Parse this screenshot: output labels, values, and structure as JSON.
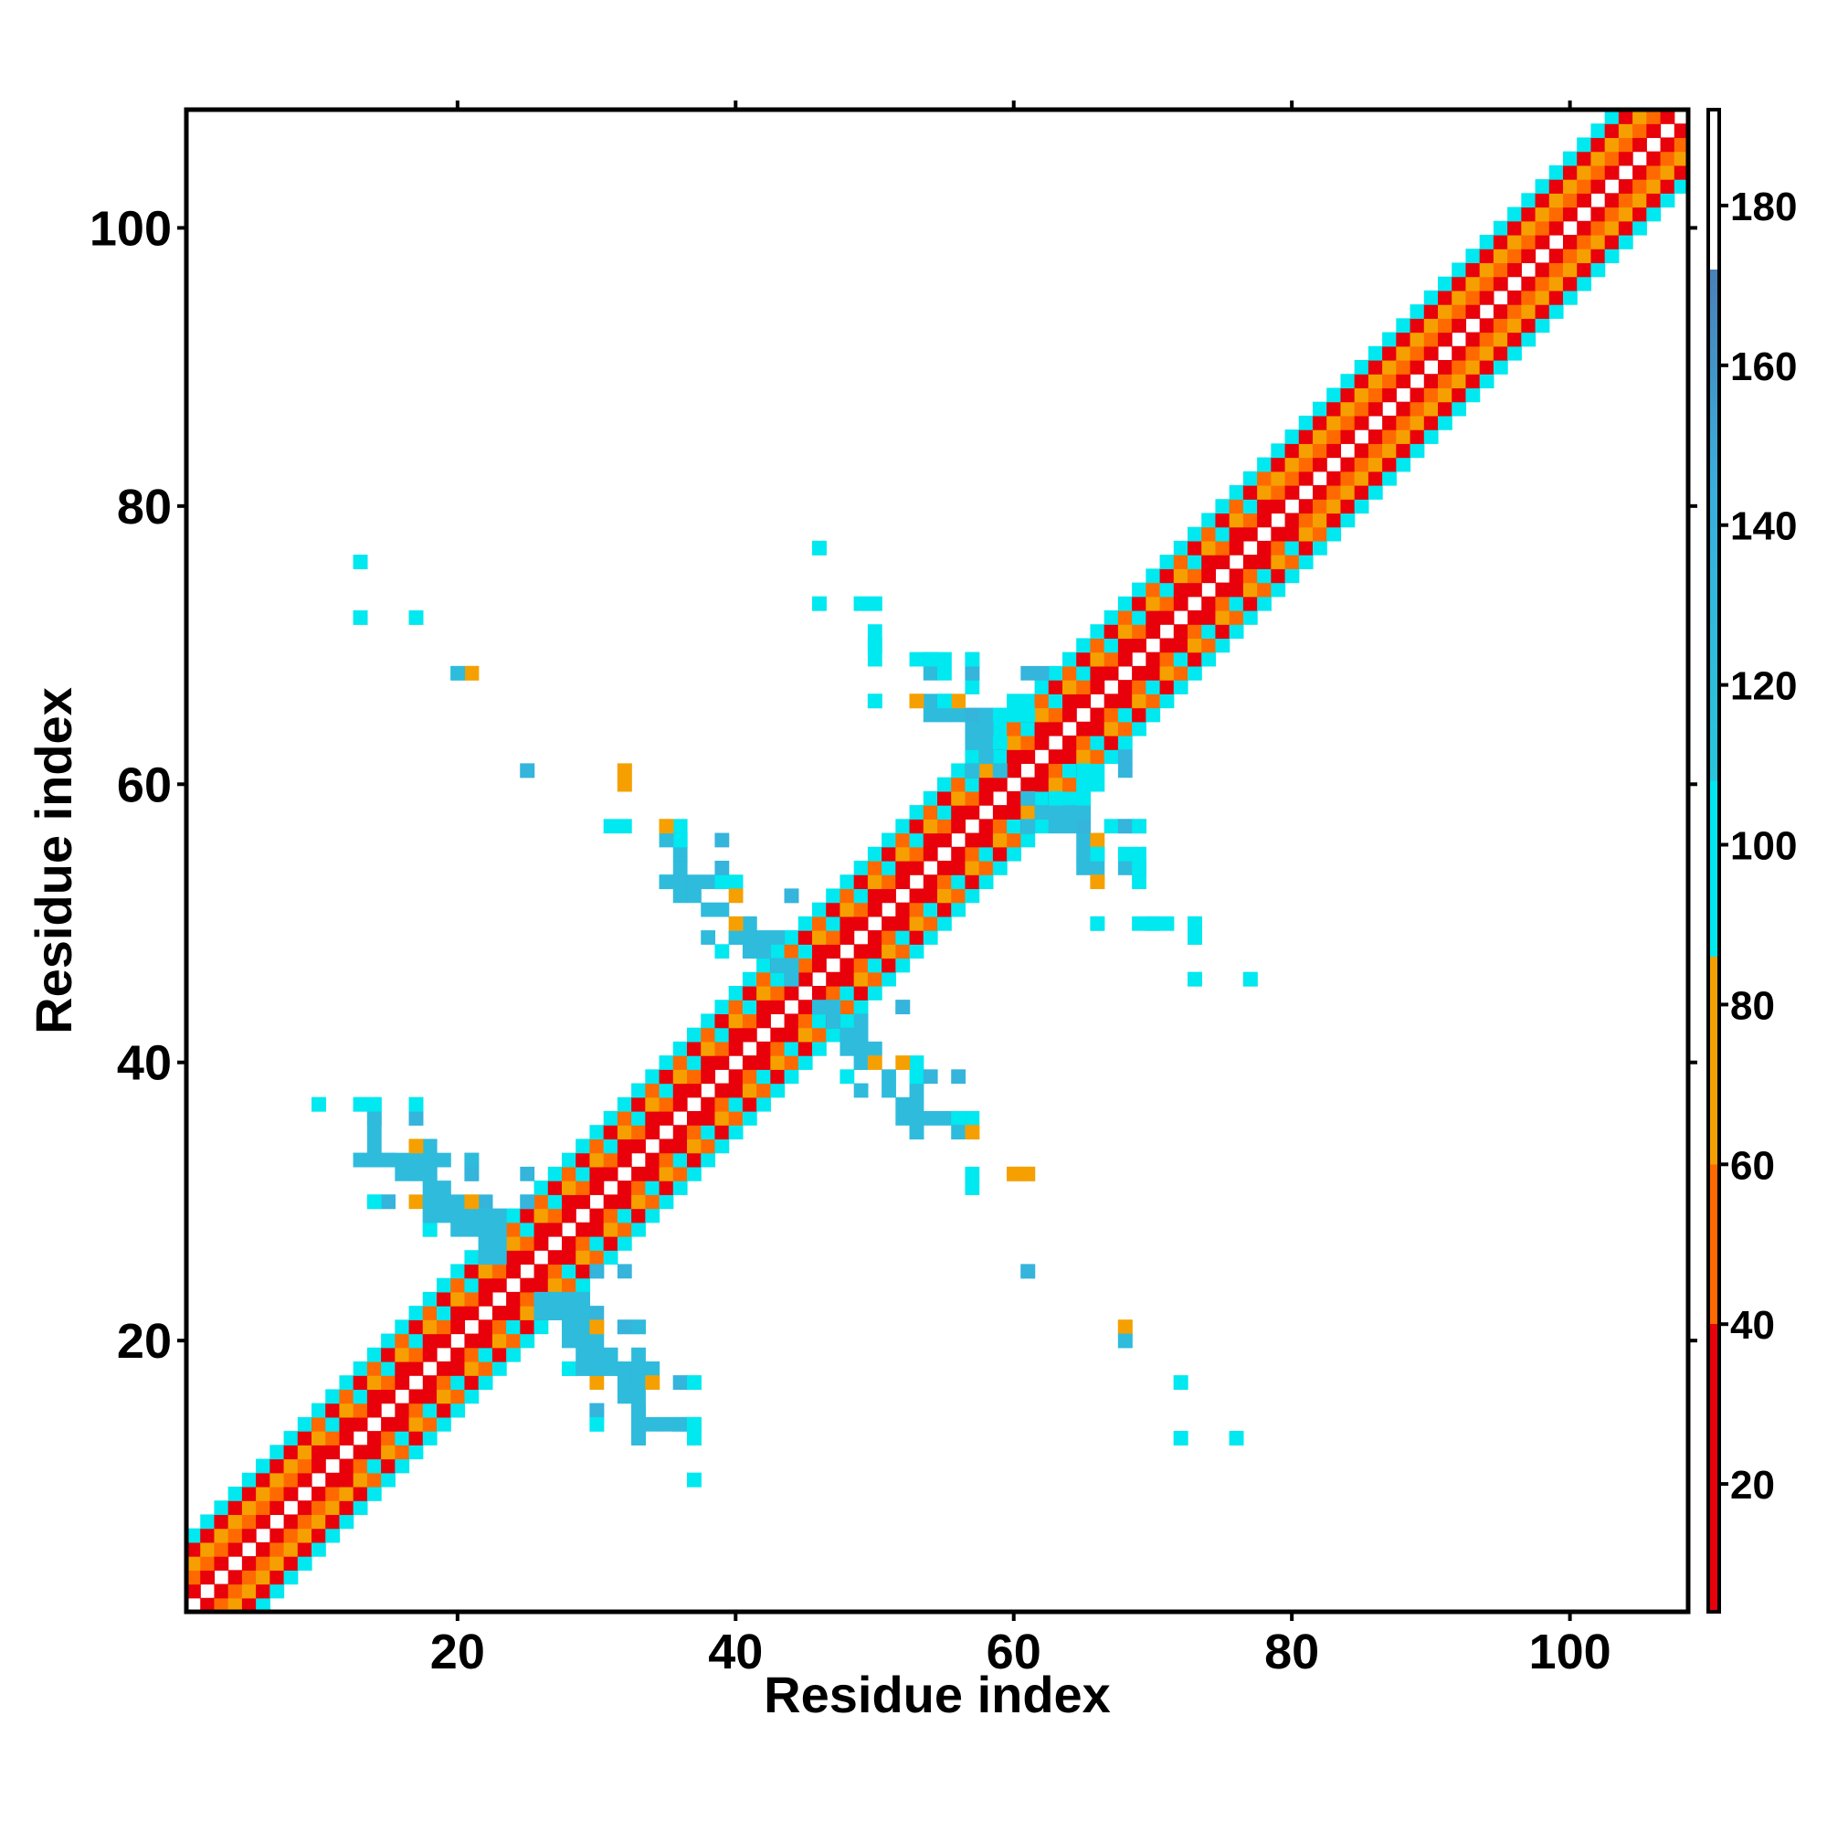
{
  "chart_data": {
    "type": "heatmap",
    "title": "",
    "xlabel": "Residue index",
    "ylabel": "Residue index",
    "xlim": [
      0.5,
      108.5
    ],
    "ylim": [
      0.5,
      108.5
    ],
    "x_ticks": [
      20,
      40,
      60,
      80,
      100
    ],
    "y_ticks": [
      20,
      40,
      60,
      80,
      100
    ],
    "grid": false,
    "legend": "colorbar-right",
    "colorbar": {
      "ticks": [
        20,
        40,
        60,
        80,
        100,
        120,
        140,
        160,
        180
      ],
      "range": [
        4,
        192
      ],
      "stops": [
        {
          "value": 4,
          "color": "#e8000a"
        },
        {
          "value": 40,
          "color": "#e8000a"
        },
        {
          "value": 40,
          "color": "#ff6a00"
        },
        {
          "value": 60,
          "color": "#ff6a00"
        },
        {
          "value": 60,
          "color": "#f5a000"
        },
        {
          "value": 86,
          "color": "#f5a000"
        },
        {
          "value": 86,
          "color": "#00e8f0"
        },
        {
          "value": 108,
          "color": "#00e8f0"
        },
        {
          "value": 108,
          "color": "#26c6dc"
        },
        {
          "value": 145,
          "color": "#3aaedc"
        },
        {
          "value": 172,
          "color": "#4a80b8"
        },
        {
          "value": 172,
          "color": "#ffffff"
        },
        {
          "value": 192,
          "color": "#ffffff"
        }
      ]
    },
    "band": {
      "residues": [
        1,
        108
      ],
      "max_offset": 5,
      "offset_values": {
        "1": 22,
        "2": 50,
        "3": 64,
        "4": 36,
        "5": 92
      },
      "secondary_values": {
        "2": 30,
        "3": 95,
        "4": 48,
        "5": 95
      },
      "wide_ranges": [
        [
          10,
          40
        ],
        [
          41,
          57
        ],
        [
          58,
          78
        ]
      ]
    },
    "contacts": [
      [
        13,
        76,
        98
      ],
      [
        13,
        72,
        98
      ],
      [
        17,
        72,
        98
      ],
      [
        20,
        68,
        98
      ],
      [
        21,
        68,
        72
      ],
      [
        25,
        61,
        135
      ],
      [
        32,
        61,
        72
      ],
      [
        32,
        60,
        72
      ],
      [
        31,
        57,
        98
      ],
      [
        35,
        57,
        72
      ],
      [
        36,
        57,
        96
      ],
      [
        36,
        56,
        125
      ],
      [
        39,
        56,
        135
      ],
      [
        36,
        54,
        125
      ],
      [
        35,
        53,
        96
      ],
      [
        37,
        53,
        125
      ],
      [
        38,
        53,
        125
      ],
      [
        39,
        53,
        96
      ],
      [
        40,
        53,
        96
      ],
      [
        40,
        52,
        72
      ],
      [
        41,
        50,
        125
      ],
      [
        44,
        52,
        135
      ],
      [
        38,
        49,
        125
      ],
      [
        40,
        49,
        96
      ],
      [
        41,
        49,
        125
      ],
      [
        42,
        49,
        125
      ],
      [
        43,
        49,
        125
      ],
      [
        46,
        77,
        98
      ],
      [
        46,
        73,
        98
      ],
      [
        49,
        73,
        98
      ],
      [
        50,
        73,
        98
      ],
      [
        50,
        70,
        98
      ],
      [
        50,
        69,
        98
      ],
      [
        50,
        66,
        98
      ],
      [
        53,
        69,
        98
      ],
      [
        54,
        69,
        125
      ],
      [
        54,
        68,
        125
      ],
      [
        57,
        69,
        135
      ],
      [
        57,
        68,
        135
      ],
      [
        62,
        68,
        135
      ],
      [
        53,
        66,
        72
      ],
      [
        54,
        66,
        125
      ],
      [
        55,
        66,
        135
      ],
      [
        54,
        65,
        125
      ],
      [
        55,
        65,
        125
      ],
      [
        56,
        65,
        125
      ],
      [
        57,
        65,
        135
      ],
      [
        58,
        65,
        125
      ],
      [
        59,
        65,
        96
      ],
      [
        60,
        65,
        96
      ],
      [
        61,
        65,
        96
      ],
      [
        57,
        64,
        125
      ],
      [
        58,
        64,
        125
      ],
      [
        57,
        63,
        125
      ],
      [
        58,
        63,
        125
      ],
      [
        59,
        63,
        96
      ],
      [
        58,
        62,
        125
      ],
      [
        57,
        61,
        125
      ],
      [
        59,
        61,
        125
      ],
      [
        68,
        61,
        135
      ],
      [
        66,
        60,
        96
      ],
      [
        67,
        57,
        96
      ],
      [
        68,
        57,
        135
      ],
      [
        69,
        57,
        96
      ],
      [
        66,
        56,
        72
      ],
      [
        66,
        55,
        98
      ],
      [
        68,
        55,
        98
      ],
      [
        69,
        55,
        98
      ],
      [
        69,
        54,
        98
      ],
      [
        66,
        53,
        72
      ],
      [
        66,
        50,
        98
      ],
      [
        70,
        50,
        98
      ],
      [
        71,
        50,
        98
      ],
      [
        73,
        50,
        98
      ],
      [
        73,
        49,
        98
      ],
      [
        73,
        46,
        98
      ],
      [
        77,
        46,
        98
      ],
      [
        10,
        37,
        98
      ],
      [
        13,
        37,
        98
      ],
      [
        14,
        37,
        125
      ],
      [
        17,
        37,
        98
      ],
      [
        14,
        36,
        125
      ],
      [
        17,
        36,
        135
      ],
      [
        17,
        34,
        72
      ],
      [
        18,
        34,
        125
      ],
      [
        14,
        34,
        125
      ],
      [
        13,
        33,
        125
      ],
      [
        14,
        33,
        125
      ],
      [
        15,
        33,
        125
      ],
      [
        16,
        33,
        125
      ],
      [
        17,
        33,
        98
      ],
      [
        18,
        33,
        125
      ],
      [
        19,
        33,
        125
      ],
      [
        21,
        33,
        135
      ],
      [
        16,
        32,
        125
      ],
      [
        17,
        32,
        125
      ],
      [
        18,
        32,
        125
      ],
      [
        21,
        32,
        125
      ],
      [
        25,
        32,
        135
      ],
      [
        18,
        31,
        125
      ],
      [
        19,
        31,
        125
      ],
      [
        14,
        30,
        98
      ],
      [
        15,
        30,
        135
      ],
      [
        17,
        30,
        72
      ],
      [
        18,
        30,
        125
      ],
      [
        19,
        30,
        125
      ],
      [
        20,
        30,
        125
      ],
      [
        21,
        30,
        72
      ],
      [
        22,
        30,
        135
      ],
      [
        18,
        29,
        125
      ],
      [
        19,
        29,
        125
      ],
      [
        20,
        29,
        125
      ],
      [
        21,
        29,
        125
      ],
      [
        22,
        29,
        125
      ],
      [
        23,
        29,
        125
      ],
      [
        18,
        28,
        125
      ],
      [
        20,
        28,
        125
      ],
      [
        21,
        28,
        125
      ],
      [
        22,
        28,
        125
      ],
      [
        23,
        28,
        125
      ],
      [
        30,
        25,
        135
      ],
      [
        26,
        23,
        125
      ],
      [
        27,
        23,
        125
      ],
      [
        26,
        22,
        125
      ],
      [
        27,
        22,
        125
      ],
      [
        28,
        22,
        125
      ],
      [
        29,
        21,
        125
      ],
      [
        29,
        20,
        125
      ],
      [
        30,
        21,
        72
      ],
      [
        32,
        21,
        135
      ],
      [
        33,
        21,
        125
      ],
      [
        28,
        18,
        98
      ],
      [
        29,
        18,
        125
      ],
      [
        30,
        18,
        125
      ],
      [
        31,
        18,
        125
      ],
      [
        32,
        18,
        125
      ],
      [
        33,
        18,
        125
      ],
      [
        33,
        17,
        125
      ],
      [
        34,
        17,
        72
      ],
      [
        36,
        17,
        135
      ],
      [
        37,
        17,
        98
      ],
      [
        30,
        15,
        135
      ],
      [
        33,
        15,
        125
      ],
      [
        30,
        14,
        98
      ],
      [
        33,
        14,
        125
      ],
      [
        35,
        14,
        125
      ],
      [
        36,
        14,
        125
      ],
      [
        37,
        14,
        98
      ],
      [
        33,
        13,
        125
      ],
      [
        37,
        13,
        98
      ],
      [
        37,
        10,
        98
      ],
      [
        46,
        44,
        125
      ],
      [
        47,
        44,
        125
      ],
      [
        47,
        43,
        125
      ],
      [
        48,
        42,
        125
      ],
      [
        48,
        41,
        125
      ],
      [
        49,
        40,
        125
      ],
      [
        48,
        39,
        98
      ],
      [
        50,
        40,
        72
      ],
      [
        51,
        39,
        125
      ],
      [
        51,
        38,
        125
      ],
      [
        52,
        37,
        125
      ],
      [
        54,
        39,
        135
      ],
      [
        52,
        36,
        125
      ],
      [
        53,
        36,
        125
      ],
      [
        55,
        36,
        125
      ],
      [
        56,
        36,
        98
      ],
      [
        53,
        35,
        125
      ],
      [
        56,
        35,
        125
      ],
      [
        57,
        35,
        72
      ],
      [
        52,
        44,
        135
      ],
      [
        57,
        32,
        98
      ],
      [
        60,
        32,
        72
      ],
      [
        61,
        32,
        72
      ],
      [
        61,
        25,
        135
      ],
      [
        68,
        21,
        72
      ],
      [
        68,
        20,
        125
      ],
      [
        72,
        17,
        98
      ],
      [
        72,
        13,
        98
      ],
      [
        76,
        13,
        98
      ]
    ]
  }
}
